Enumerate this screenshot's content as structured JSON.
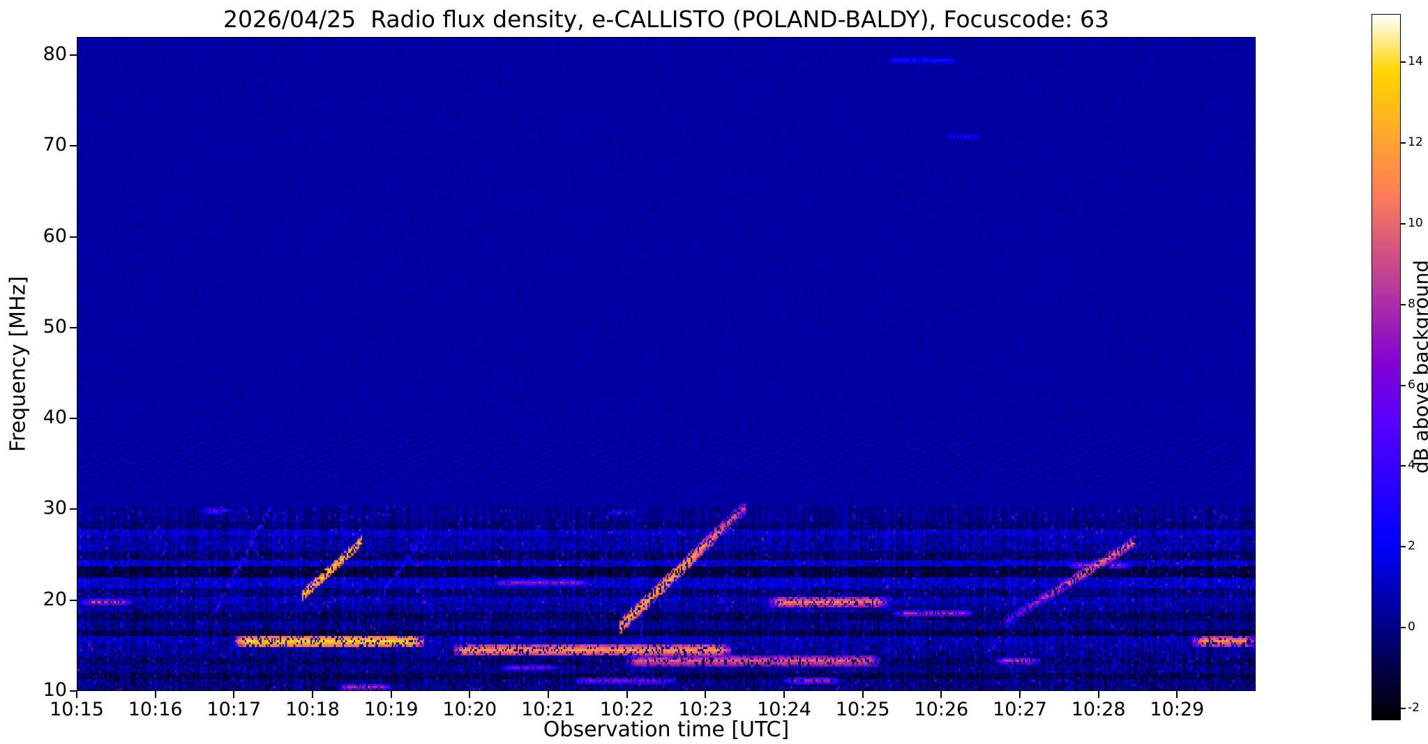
{
  "figure": {
    "background": "#ffffff",
    "frame_color": "#000000"
  },
  "chart_data": {
    "type": "heatmap",
    "title": "2026/04/25  Radio flux density, e-CALLISTO (POLAND-BALDY), Focuscode: 63",
    "xlabel": "Observation time [UTC]",
    "ylabel": "Frequency [MHz]",
    "colorbar_label": "dB above background",
    "x_ticks": [
      "10:15",
      "10:16",
      "10:17",
      "10:18",
      "10:19",
      "10:20",
      "10:21",
      "10:22",
      "10:23",
      "10:24",
      "10:25",
      "10:26",
      "10:27",
      "10:28",
      "10:29"
    ],
    "x_tick_minutes": [
      0,
      1,
      2,
      3,
      4,
      5,
      6,
      7,
      8,
      9,
      10,
      11,
      12,
      13,
      14
    ],
    "x_range_minutes": [
      0,
      15
    ],
    "y_ticks": [
      10,
      20,
      30,
      40,
      50,
      60,
      70,
      80
    ],
    "y_range_mhz": [
      10,
      82
    ],
    "colorbar_ticks": [
      -2,
      0,
      2,
      4,
      6,
      8,
      10,
      12,
      14
    ],
    "value_range_db": [
      -2.3,
      15.2
    ],
    "colormap": "gnuplot2",
    "colormap_stops": [
      "#000000",
      "#000080",
      "#0000ff",
      "#4000ff",
      "#8000d6",
      "#bf4096",
      "#ff8057",
      "#ffbf17",
      "#ffffff"
    ],
    "background_db": 0.3,
    "grid": false,
    "noise_bands": [
      [
        10.0,
        11.3,
        -0.5,
        2.6
      ],
      [
        11.3,
        12.0,
        -1.2,
        2.1
      ],
      [
        12.0,
        12.8,
        -0.3,
        2.3
      ],
      [
        12.8,
        13.6,
        -0.8,
        2.4
      ],
      [
        13.6,
        14.3,
        -0.2,
        2.3
      ],
      [
        14.3,
        15.1,
        0.0,
        2.4
      ],
      [
        15.1,
        15.9,
        0.3,
        2.6
      ],
      [
        15.9,
        16.6,
        -1.3,
        1.9
      ],
      [
        16.6,
        17.6,
        -0.2,
        2.3
      ],
      [
        17.6,
        18.6,
        -0.9,
        2.2
      ],
      [
        18.6,
        19.5,
        0.0,
        2.3
      ],
      [
        19.5,
        20.4,
        0.4,
        2.6
      ],
      [
        20.4,
        21.4,
        -0.6,
        2.4
      ],
      [
        21.4,
        22.5,
        0.8,
        2.6
      ],
      [
        22.5,
        23.6,
        -1.4,
        1.9
      ],
      [
        23.6,
        24.3,
        0.9,
        2.6
      ],
      [
        24.3,
        25.4,
        -0.7,
        2.1
      ],
      [
        25.4,
        27.1,
        0.2,
        2.3
      ],
      [
        27.1,
        27.8,
        0.8,
        2.4
      ],
      [
        27.8,
        28.6,
        -0.5,
        1.7
      ],
      [
        28.6,
        30.5,
        0.0,
        1.3
      ]
    ],
    "ripple_bands": [
      {
        "f_low": 32.5,
        "f_high": 38.0,
        "amplitude_db": 0.55
      },
      {
        "f_low": 30.5,
        "f_high": 32.5,
        "amplitude_db": 0.22
      },
      {
        "f_low": 38.0,
        "f_high": 39.5,
        "amplitude_db": 0.22
      }
    ],
    "horizontal_streaks": [
      {
        "t0": 2.0,
        "t1": 4.4,
        "f": 15.3,
        "w": 0.45,
        "db": 14.5
      },
      {
        "t0": 4.8,
        "t1": 8.3,
        "f": 14.5,
        "w": 0.4,
        "db": 12.5
      },
      {
        "t0": 7.0,
        "t1": 10.2,
        "f": 13.2,
        "w": 0.38,
        "db": 10.5
      },
      {
        "t0": 8.8,
        "t1": 10.3,
        "f": 19.7,
        "w": 0.45,
        "db": 11.5
      },
      {
        "t0": 14.2,
        "t1": 15.0,
        "f": 15.5,
        "w": 0.45,
        "db": 12.0
      },
      {
        "t0": 0.05,
        "t1": 0.7,
        "f": 19.8,
        "w": 0.35,
        "db": 9.5
      },
      {
        "t0": 10.4,
        "t1": 11.4,
        "f": 18.6,
        "w": 0.35,
        "db": 8.5
      },
      {
        "t0": 11.7,
        "t1": 12.25,
        "f": 13.2,
        "w": 0.35,
        "db": 9.0
      },
      {
        "t0": 3.3,
        "t1": 4.0,
        "f": 10.4,
        "w": 0.3,
        "db": 9.0
      },
      {
        "t0": 6.3,
        "t1": 7.6,
        "f": 11.0,
        "w": 0.3,
        "db": 7.0
      },
      {
        "t0": 9.0,
        "t1": 9.7,
        "f": 11.2,
        "w": 0.3,
        "db": 8.0
      },
      {
        "t0": 5.4,
        "t1": 6.1,
        "f": 12.4,
        "w": 0.3,
        "db": 7.0
      },
      {
        "t0": 1.55,
        "t1": 1.95,
        "f": 29.9,
        "w": 0.22,
        "db": 7.0
      },
      {
        "t0": 6.75,
        "t1": 7.1,
        "f": 29.5,
        "w": 0.2,
        "db": 6.0
      },
      {
        "t0": 5.3,
        "t1": 6.5,
        "f": 21.9,
        "w": 0.35,
        "db": 8.0
      },
      {
        "t0": 12.6,
        "t1": 13.4,
        "f": 23.8,
        "w": 0.35,
        "db": 8.5
      }
    ],
    "drifting_bursts": [
      {
        "t0": 1.75,
        "t1": 2.45,
        "f0": 19.0,
        "f1": 30.2,
        "db": 6.0,
        "w": 0.5,
        "fade": "none",
        "gap": 0.5
      },
      {
        "t0": 2.85,
        "t1": 3.6,
        "f0": 20.5,
        "f1": 26.4,
        "db": 14.5,
        "w": 0.55,
        "fade": "none",
        "gap": 0.72
      },
      {
        "t0": 3.9,
        "t1": 4.4,
        "f0": 21.0,
        "f1": 27.0,
        "db": 5.0,
        "w": 0.4,
        "fade": "none",
        "gap": 0.5
      },
      {
        "t0": 6.9,
        "t1": 8.5,
        "f0": 17.0,
        "f1": 30.3,
        "db": 13.5,
        "w": 0.6,
        "fade": "high",
        "gap": 0.72
      },
      {
        "t0": 11.8,
        "t1": 13.45,
        "f0": 17.5,
        "f1": 26.4,
        "db": 11.5,
        "w": 0.5,
        "fade": "low",
        "gap": 0.65
      }
    ],
    "high_freq_lines": [
      {
        "t0": 10.3,
        "t1": 11.2,
        "f": 79.6,
        "db": 3.8,
        "w": 0.3
      },
      {
        "t0": 11.05,
        "t1": 11.5,
        "f": 71.0,
        "db": 3.2,
        "w": 0.25
      }
    ]
  }
}
